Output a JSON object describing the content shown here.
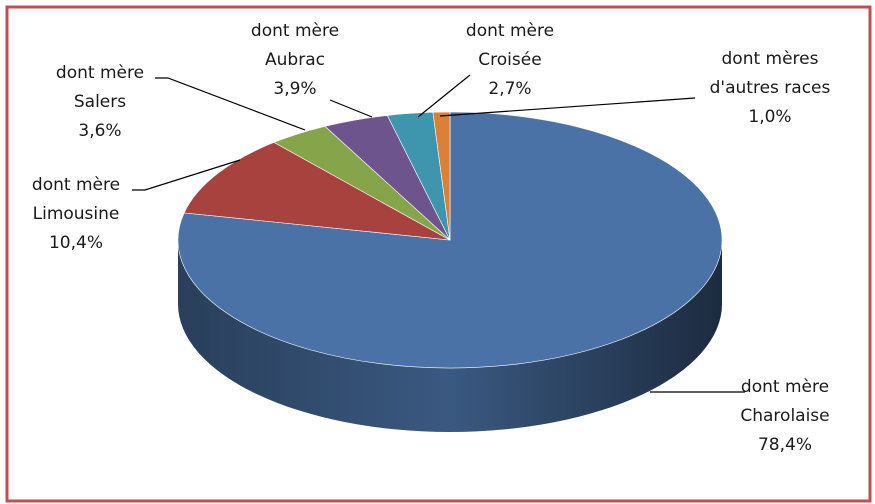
{
  "chart_data": {
    "type": "pie",
    "title": "",
    "three_d": true,
    "legend": "none",
    "slices": [
      {
        "label": [
          "dont mère",
          "Charolaise"
        ],
        "value_text": "78,4%",
        "value": 78.4,
        "color": "#4A72A6"
      },
      {
        "label": [
          "dont mère",
          "Limousine"
        ],
        "value_text": "10,4%",
        "value": 10.4,
        "color": "#A8423F"
      },
      {
        "label": [
          "dont mère",
          "Salers"
        ],
        "value_text": "3,6%",
        "value": 3.6,
        "color": "#86A44A"
      },
      {
        "label": [
          "dont mère",
          "Aubrac"
        ],
        "value_text": "3,9%",
        "value": 3.9,
        "color": "#6E548D"
      },
      {
        "label": [
          "dont mère",
          "Croisée"
        ],
        "value_text": "2,7%",
        "value": 2.7,
        "color": "#3D96AE"
      },
      {
        "label": [
          "dont mères",
          "d'autres races"
        ],
        "value_text": "1,0%",
        "value": 1.0,
        "color": "#DA8137"
      }
    ],
    "frame_color": "#C0504D"
  }
}
